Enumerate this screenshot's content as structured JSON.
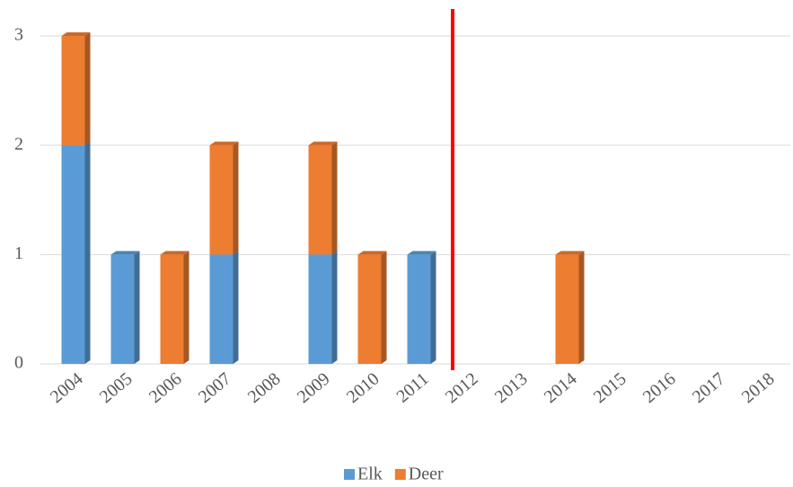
{
  "chart_data": {
    "type": "bar",
    "stacked": true,
    "categories": [
      "2004",
      "2005",
      "2006",
      "2007",
      "2008",
      "2009",
      "2010",
      "2011",
      "2012",
      "2013",
      "2014",
      "2015",
      "2016",
      "2017",
      "2018"
    ],
    "series": [
      {
        "name": "Elk",
        "color": "#5b9bd5",
        "values": [
          2,
          1,
          0,
          1,
          0,
          1,
          0,
          1,
          0,
          0,
          0,
          0,
          0,
          0,
          0
        ]
      },
      {
        "name": "Deer",
        "color": "#ed7d31",
        "values": [
          1,
          0,
          1,
          1,
          0,
          1,
          1,
          0,
          0,
          0,
          1,
          0,
          0,
          0,
          0
        ]
      }
    ],
    "ylim": [
      0,
      3
    ],
    "yticks": [
      0,
      1,
      2,
      3
    ],
    "grid": true,
    "legend": "bottom"
  }
}
